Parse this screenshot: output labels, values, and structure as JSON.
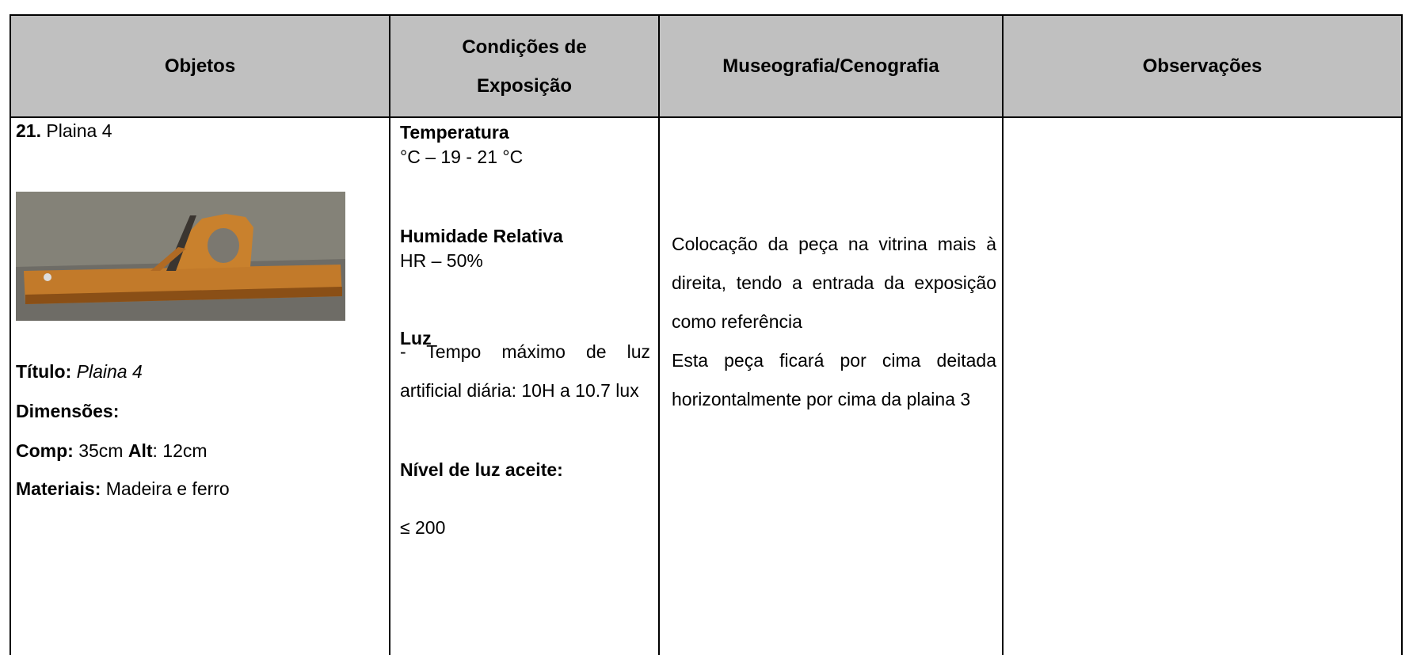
{
  "table": {
    "headers": [
      {
        "lines": [
          "Objetos"
        ]
      },
      {
        "lines": [
          "Condições de",
          "Exposição"
        ]
      },
      {
        "lines": [
          "Museografia/Cenografia"
        ]
      },
      {
        "lines": [
          "Observações"
        ]
      }
    ],
    "row": {
      "objeto": {
        "number": "21.",
        "name": "Plaina 4",
        "titulo": {
          "label": "Título:",
          "value": "Plaina 4"
        },
        "dimensoes": {
          "label": "Dimensões:"
        },
        "medidas": {
          "comp_label": "Comp:",
          "comp": "35cm",
          "alt_label": "Alt",
          "alt": ": 12cm"
        },
        "materiais": {
          "label": "Materiais:",
          "value": "Madeira e ferro"
        }
      },
      "condicoes": {
        "temperatura": {
          "label": "Temperatura",
          "value": "°C – 19 - 21 °C"
        },
        "humidade": {
          "label": "Humidade Relativa",
          "value": "HR – 50%"
        },
        "luz": {
          "label": "Luz",
          "value": "- Tempo máximo de luz artificial diária: 10H a 10.7 lux"
        },
        "nivel": {
          "label": "Nível de luz aceite:",
          "value": "≤ 200"
        }
      },
      "museografia": [
        "Colocação da peça na vitrina mais à direita, tendo a entrada da exposição como referência",
        "Esta peça ficará por cima deitada horizontalmente por cima da plaina 3"
      ]
    }
  }
}
